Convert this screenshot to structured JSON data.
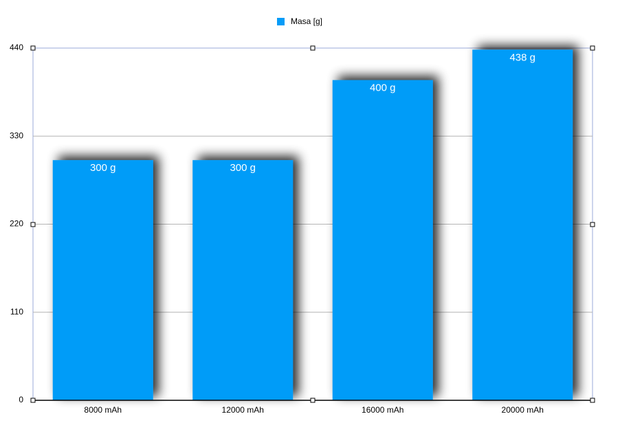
{
  "chart_data": {
    "type": "bar",
    "categories": [
      "8000 mAh",
      "12000 mAh",
      "16000 mAh",
      "20000 mAh"
    ],
    "series": [
      {
        "name": "Masa [g]",
        "color": "#069cf8",
        "values": [
          300,
          300,
          400,
          438
        ],
        "value_labels": [
          "300 g",
          "300 g",
          "400 g",
          "438 g"
        ]
      }
    ],
    "ylim": [
      0,
      440
    ],
    "yticks": [
      0,
      110,
      220,
      330,
      440
    ],
    "grid": true,
    "legend": "top"
  }
}
